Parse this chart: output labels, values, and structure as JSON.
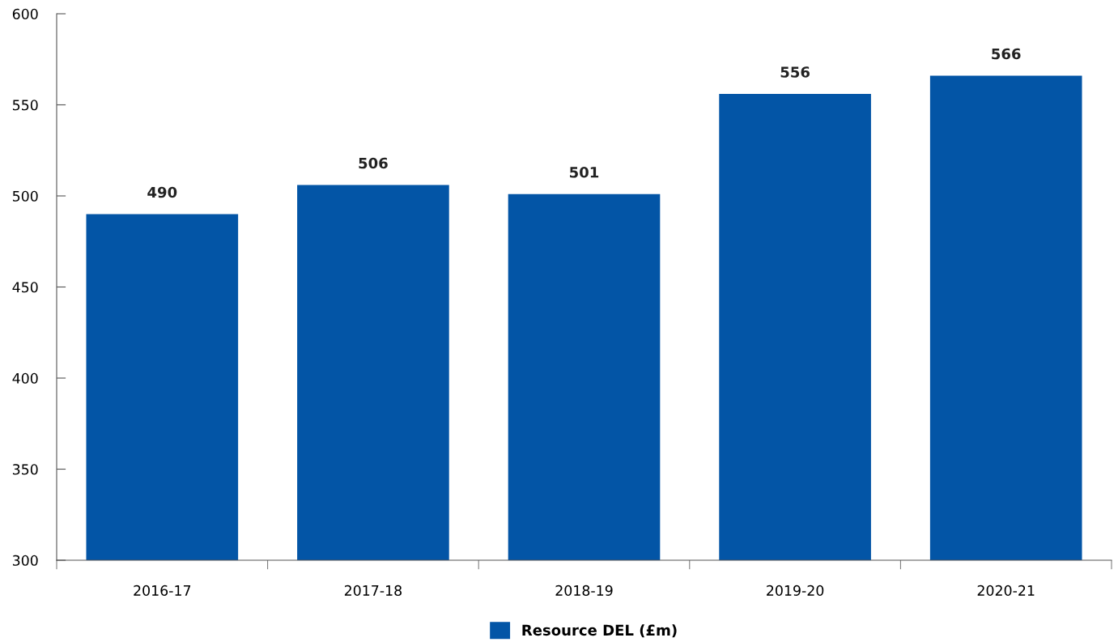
{
  "chart_data": {
    "type": "bar",
    "categories": [
      "2016-17",
      "2017-18",
      "2018-19",
      "2019-20",
      "2020-21"
    ],
    "series": [
      {
        "name": "Resource DEL (£m)",
        "color": "#0355a6",
        "values": [
          490,
          506,
          501,
          556,
          566
        ]
      }
    ],
    "ylim": [
      300,
      600
    ],
    "yticks": [
      300,
      350,
      400,
      450,
      500,
      550,
      600
    ],
    "data_labels": true,
    "legend": "bottom",
    "grid": false
  }
}
